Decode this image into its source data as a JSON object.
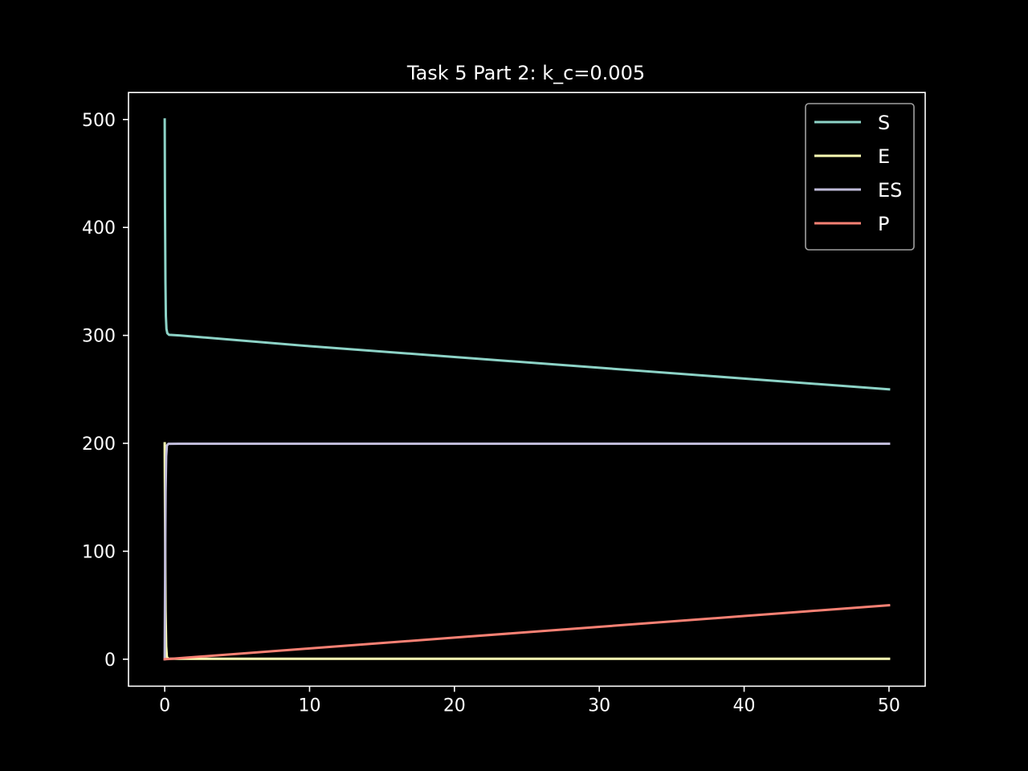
{
  "chart_data": {
    "type": "line",
    "title": "Task 5 Part 2: k_c=0.005",
    "xlabel": "",
    "ylabel": "",
    "xlim": [
      -2.5,
      52.5
    ],
    "ylim": [
      -25,
      525
    ],
    "x_ticks": [
      0,
      10,
      20,
      30,
      40,
      50
    ],
    "y_ticks": [
      0,
      100,
      200,
      300,
      400,
      500
    ],
    "grid": false,
    "legend": {
      "position": "top-right"
    },
    "series": [
      {
        "name": "S",
        "color": "#8dd3c7",
        "points": [
          [
            0,
            500
          ],
          [
            0.02,
            420
          ],
          [
            0.05,
            350
          ],
          [
            0.08,
            318
          ],
          [
            0.12,
            306
          ],
          [
            0.18,
            302
          ],
          [
            0.3,
            300.5
          ],
          [
            1,
            300
          ],
          [
            10,
            290
          ],
          [
            20,
            280
          ],
          [
            30,
            270
          ],
          [
            40,
            260
          ],
          [
            50,
            250
          ]
        ]
      },
      {
        "name": "E",
        "color": "#feffb3",
        "points": [
          [
            0,
            200
          ],
          [
            0.03,
            110
          ],
          [
            0.06,
            45
          ],
          [
            0.1,
            12
          ],
          [
            0.15,
            2
          ],
          [
            0.25,
            0.5
          ],
          [
            1,
            0.4
          ],
          [
            50,
            0.4
          ]
        ]
      },
      {
        "name": "ES",
        "color": "#bfbbd9",
        "points": [
          [
            0,
            0
          ],
          [
            0.03,
            90
          ],
          [
            0.06,
            155
          ],
          [
            0.1,
            188
          ],
          [
            0.15,
            198
          ],
          [
            0.25,
            199.5
          ],
          [
            1,
            199.6
          ],
          [
            50,
            199.6
          ]
        ]
      },
      {
        "name": "P",
        "color": "#fa8174",
        "points": [
          [
            0,
            0
          ],
          [
            0.3,
            0.2
          ],
          [
            10,
            10
          ],
          [
            20,
            20
          ],
          [
            30,
            30
          ],
          [
            40,
            40
          ],
          [
            50,
            50
          ]
        ]
      }
    ]
  }
}
